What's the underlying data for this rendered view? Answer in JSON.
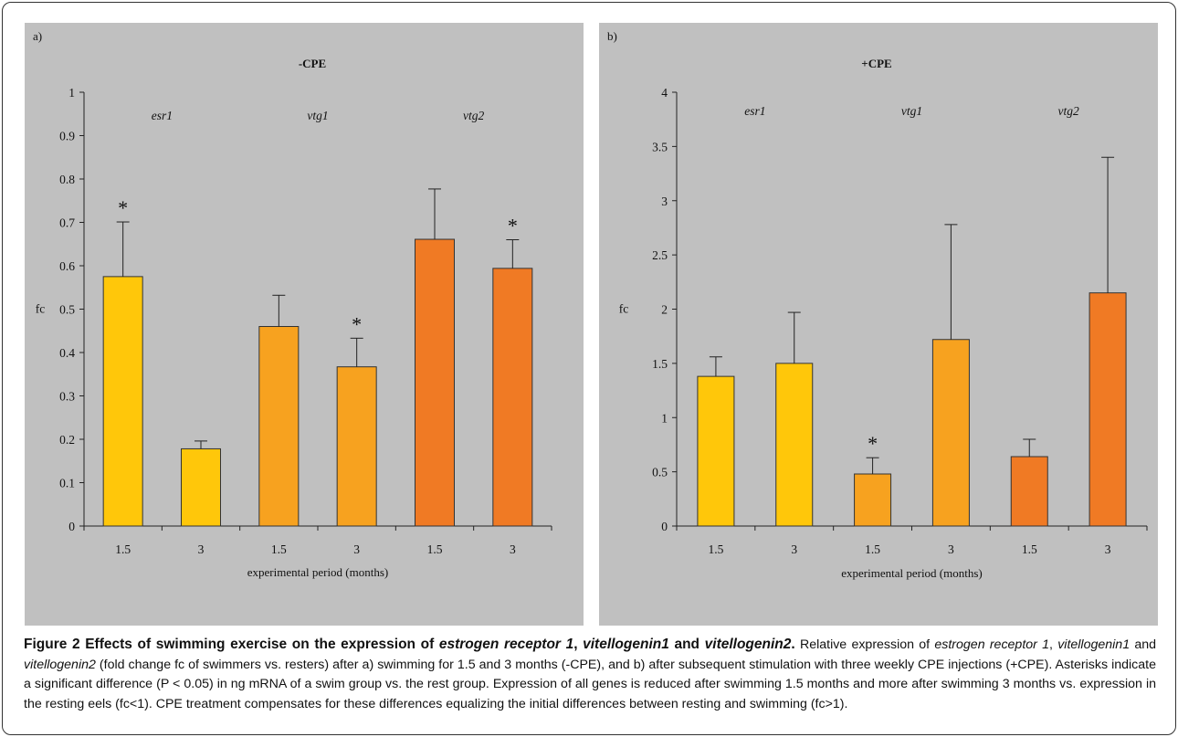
{
  "colors": {
    "panel_bg": "#c0c0c0",
    "bar_esr1": "#ffc70a",
    "bar_vtg1": "#f7a21f",
    "bar_vtg2": "#f07a24"
  },
  "chart_data": [
    {
      "type": "bar",
      "panel_label": "a)",
      "title": "-CPE",
      "xlabel": "experimental period (months)",
      "ylabel": "fc",
      "ylim": [
        0,
        1
      ],
      "yticks": [
        "0",
        "0.1",
        "0.2",
        "0.3",
        "0.4",
        "0.5",
        "0.6",
        "0.7",
        "0.8",
        "0.9",
        "1"
      ],
      "ytick_values": [
        0,
        0.1,
        0.2,
        0.3,
        0.4,
        0.5,
        0.6,
        0.7,
        0.8,
        0.9,
        1
      ],
      "categories": [
        "1.5",
        "3",
        "1.5",
        "3",
        "1.5",
        "3"
      ],
      "groups": [
        "esr1",
        "vtg1",
        "vtg2"
      ],
      "values": [
        0.575,
        0.178,
        0.46,
        0.367,
        0.661,
        0.594
      ],
      "error_upper": [
        0.701,
        0.196,
        0.532,
        0.433,
        0.777,
        0.66
      ],
      "significant": [
        true,
        false,
        false,
        true,
        false,
        true
      ],
      "marker": "*",
      "grid": false,
      "legend": "none"
    },
    {
      "type": "bar",
      "panel_label": "b)",
      "title": "+CPE",
      "xlabel": "experimental period (months)",
      "ylabel": "fc",
      "ylim": [
        0,
        4
      ],
      "yticks": [
        "0",
        "0.5",
        "1",
        "1.5",
        "2",
        "2.5",
        "3",
        "3.5",
        "4"
      ],
      "ytick_values": [
        0,
        0.5,
        1,
        1.5,
        2,
        2.5,
        3,
        3.5,
        4
      ],
      "categories": [
        "1.5",
        "3",
        "1.5",
        "3",
        "1.5",
        "3"
      ],
      "groups": [
        "esr1",
        "vtg1",
        "vtg2"
      ],
      "values": [
        1.38,
        1.5,
        0.48,
        1.72,
        0.64,
        2.15
      ],
      "error_upper": [
        1.56,
        1.97,
        0.63,
        2.78,
        0.8,
        3.4
      ],
      "significant": [
        false,
        false,
        true,
        false,
        false,
        false
      ],
      "marker": "*",
      "grid": false,
      "legend": "none"
    }
  ],
  "caption": {
    "title_parts": [
      "Figure 2 Effects of swimming exercise on the expression of ",
      "estrogen receptor 1",
      ", ",
      "vitellogenin1",
      " and ",
      "vitellogenin2",
      "."
    ],
    "body_parts": [
      " Relative expression of ",
      "estrogen receptor 1",
      ", ",
      "vitellogenin1",
      " and ",
      "vitellogenin2",
      " (fold change fc of swimmers vs. resters) after a) swimming for 1.5 and 3 months (-CPE), and b) after subsequent stimulation with three weekly CPE injections (+CPE). Asterisks indicate a significant difference (P < 0.05) in ng mRNA of a swim group vs. the rest group. Expression of all genes is reduced after swimming 1.5 months and more after swimming 3 months vs. expression in the resting eels (fc<1). CPE treatment compensates for these differences equalizing the initial differences between resting and swimming (fc>1)."
    ]
  }
}
